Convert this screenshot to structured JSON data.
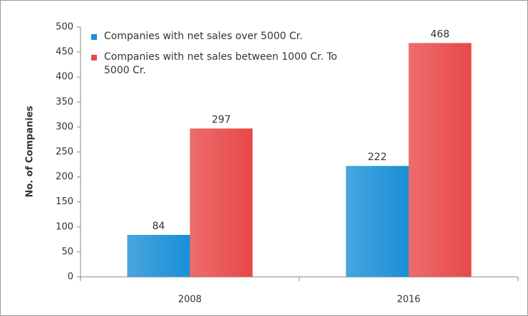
{
  "chart_data": {
    "type": "bar",
    "y_label": "No. of Companies",
    "categories": [
      "2008",
      "2016"
    ],
    "series": [
      {
        "name": "Companies with net sales over 5000 Cr.",
        "color": "#1a8fd6",
        "values": [
          84,
          222
        ]
      },
      {
        "name": "Companies with net sales between 1000 Cr. To 5000 Cr.",
        "color": "#e84848",
        "values": [
          297,
          468
        ]
      }
    ],
    "ylim": [
      0,
      500
    ],
    "yticks": [
      0,
      50,
      100,
      150,
      200,
      250,
      300,
      350,
      400,
      450,
      500
    ],
    "legend": "upper-left",
    "grid": false
  }
}
